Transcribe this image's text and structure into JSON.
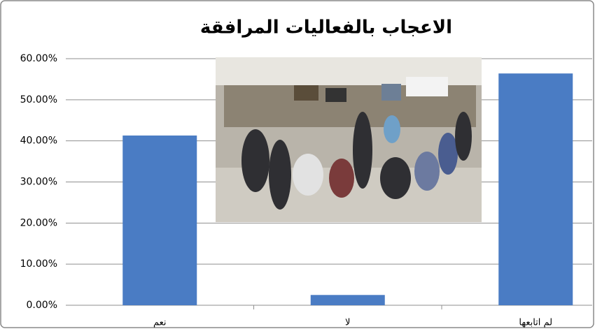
{
  "chart_data": {
    "type": "bar",
    "title": "الاعجاب بالفعاليات المرافقة",
    "categories": [
      "نعم",
      "لا",
      "لم اتابعها"
    ],
    "values": [
      41.3,
      2.5,
      56.4
    ],
    "color": "#4a7cc4",
    "ylim": [
      0,
      60
    ],
    "yticks": [
      {
        "value": 0,
        "label": "0.00%"
      },
      {
        "value": 10,
        "label": "10.00%"
      },
      {
        "value": 20,
        "label": "20.00%"
      },
      {
        "value": 30,
        "label": "30.00%"
      },
      {
        "value": 40,
        "label": "40.00%"
      },
      {
        "value": 50,
        "label": "50.00%"
      },
      {
        "value": 60,
        "label": "60.00%"
      }
    ],
    "grid": true
  }
}
